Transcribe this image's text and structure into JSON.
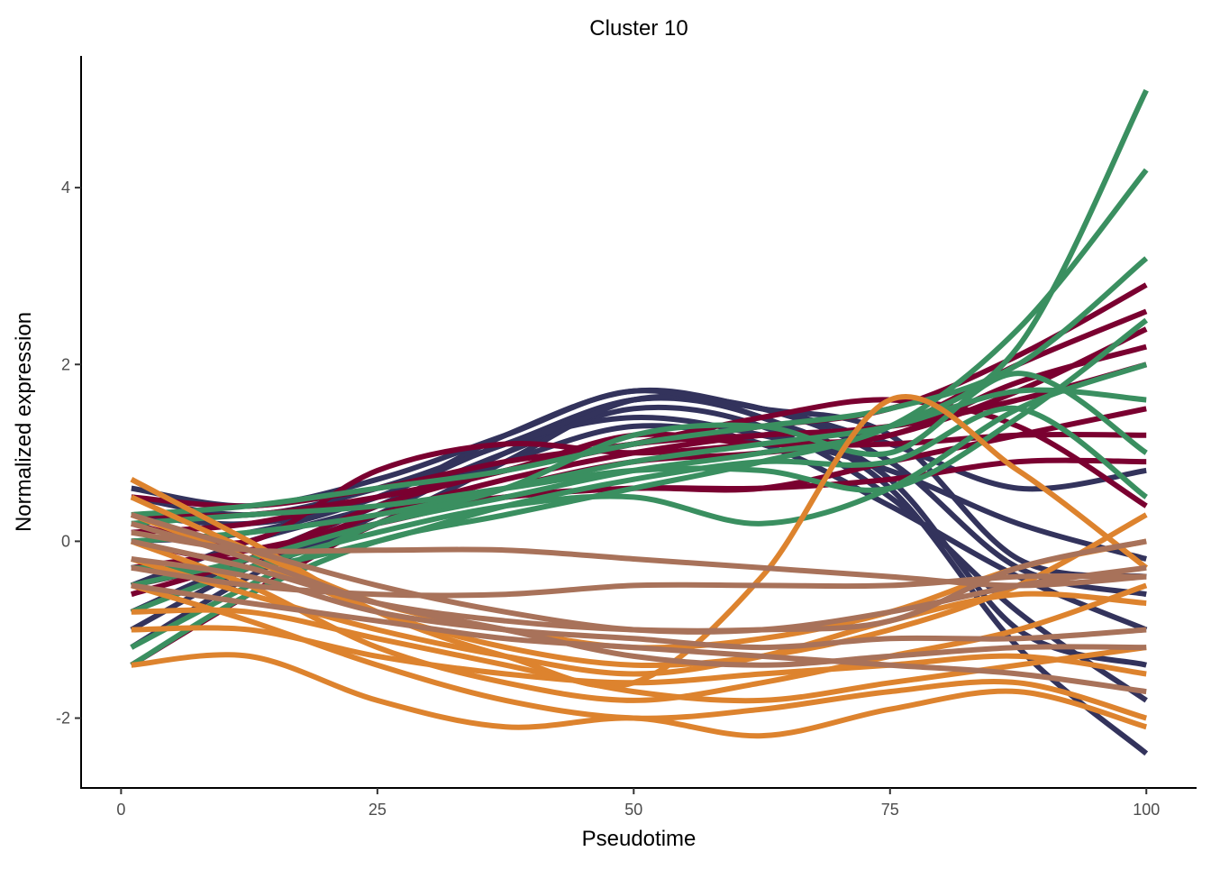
{
  "chart_data": {
    "type": "line",
    "title": "Cluster 10",
    "xlabel": "Pseudotime",
    "ylabel": "Normalized expression",
    "xlim": [
      -3.9,
      104.9
    ],
    "ylim": [
      -2.79,
      5.49
    ],
    "xticks": [
      0,
      25,
      50,
      75,
      100
    ],
    "yticks": [
      -2,
      0,
      2,
      4
    ],
    "grid": false,
    "legend": "none",
    "x": [
      1,
      12.5,
      25,
      37.5,
      50,
      62.5,
      75,
      87.5,
      100
    ],
    "groups": [
      {
        "name": "navy",
        "color": "#33335c",
        "series": [
          [
            0.5,
            0.3,
            0.6,
            1.1,
            1.6,
            1.5,
            0.9,
            -0.3,
            -0.6
          ],
          [
            0.3,
            0.2,
            0.5,
            1.2,
            1.7,
            1.5,
            1.2,
            -0.2,
            -0.4
          ],
          [
            -1.2,
            -0.4,
            0.3,
            1.0,
            1.6,
            1.4,
            0.6,
            -1.2,
            -2.4
          ],
          [
            -0.8,
            -0.2,
            0.4,
            1.0,
            1.5,
            1.3,
            0.5,
            -0.8,
            -1.8
          ],
          [
            0.0,
            0.1,
            0.5,
            1.1,
            1.4,
            1.2,
            0.8,
            0.2,
            -0.2
          ],
          [
            -1.0,
            -0.3,
            0.2,
            0.9,
            1.6,
            1.5,
            1.1,
            0.6,
            0.8
          ],
          [
            0.6,
            0.4,
            0.7,
            1.2,
            1.7,
            1.4,
            0.7,
            -1.0,
            -1.4
          ],
          [
            -0.5,
            0.0,
            0.4,
            0.9,
            1.3,
            1.1,
            0.4,
            -0.4,
            -1.0
          ]
        ]
      },
      {
        "name": "crimson",
        "color": "#7a0030",
        "series": [
          [
            0.5,
            0.4,
            0.6,
            0.9,
            1.1,
            1.3,
            1.5,
            2.1,
            2.9
          ],
          [
            -0.5,
            -0.2,
            0.3,
            0.7,
            1.0,
            1.2,
            1.3,
            2.0,
            2.6
          ],
          [
            0.2,
            0.0,
            0.8,
            1.1,
            1.0,
            1.1,
            1.2,
            1.8,
            2.2
          ],
          [
            -1.4,
            -0.6,
            0.2,
            0.6,
            0.9,
            1.0,
            1.2,
            1.7,
            2.4
          ],
          [
            0.0,
            -0.2,
            0.3,
            0.5,
            0.6,
            0.6,
            0.9,
            1.2,
            1.5
          ],
          [
            -0.3,
            -0.1,
            0.2,
            0.5,
            0.6,
            0.6,
            0.7,
            0.9,
            0.9
          ],
          [
            0.3,
            0.3,
            0.5,
            0.8,
            1.1,
            1.4,
            1.6,
            1.3,
            0.4
          ],
          [
            -0.6,
            -0.2,
            0.4,
            0.8,
            1.1,
            1.2,
            1.3,
            1.6,
            2.0
          ],
          [
            0.1,
            0.2,
            0.5,
            0.8,
            1.2,
            1.1,
            1.1,
            1.2,
            1.2
          ]
        ]
      },
      {
        "name": "green",
        "color": "#3a8f60",
        "series": [
          [
            -1.4,
            -0.6,
            0.0,
            0.3,
            0.6,
            0.9,
            1.3,
            2.2,
            5.1
          ],
          [
            -0.5,
            -0.2,
            0.2,
            0.5,
            0.8,
            1.0,
            1.3,
            2.4,
            4.2
          ],
          [
            0.3,
            0.4,
            0.6,
            0.8,
            1.1,
            1.3,
            1.5,
            2.0,
            3.2
          ],
          [
            -0.8,
            -0.3,
            0.1,
            0.4,
            0.5,
            0.2,
            0.6,
            1.5,
            2.0
          ],
          [
            0.0,
            0.1,
            0.3,
            0.6,
            0.9,
            1.1,
            1.3,
            1.7,
            1.6
          ],
          [
            -0.3,
            -0.3,
            0.0,
            0.4,
            0.7,
            0.9,
            0.9,
            1.5,
            0.5
          ],
          [
            -1.2,
            -0.5,
            0.2,
            0.6,
            1.2,
            1.3,
            1.0,
            1.9,
            1.0
          ],
          [
            0.2,
            0.3,
            0.4,
            0.6,
            0.8,
            0.8,
            0.6,
            1.4,
            2.5
          ]
        ]
      },
      {
        "name": "orange",
        "color": "#dd832e",
        "series": [
          [
            0.7,
            0.0,
            -0.8,
            -1.3,
            -1.6,
            -0.4,
            1.6,
            0.8,
            -0.3
          ],
          [
            -1.4,
            -1.3,
            -1.8,
            -2.1,
            -2.0,
            -2.2,
            -1.9,
            -1.7,
            -2.1
          ],
          [
            0.0,
            -0.5,
            -1.2,
            -1.6,
            -1.8,
            -1.6,
            -1.3,
            -1.0,
            -0.5
          ],
          [
            -0.5,
            -0.9,
            -1.4,
            -1.8,
            -2.0,
            -1.9,
            -1.7,
            -1.6,
            -2.0
          ],
          [
            0.3,
            -0.2,
            -0.8,
            -1.2,
            -1.4,
            -1.3,
            -1.0,
            -0.5,
            0.3
          ],
          [
            -1.0,
            -1.0,
            -1.3,
            -1.5,
            -1.6,
            -1.5,
            -1.4,
            -1.3,
            -1.5
          ],
          [
            -0.2,
            -0.6,
            -1.0,
            -1.3,
            -1.5,
            -1.3,
            -0.9,
            -0.6,
            -0.7
          ],
          [
            -0.8,
            -0.8,
            -1.1,
            -1.4,
            -1.7,
            -1.8,
            -1.6,
            -1.4,
            -1.2
          ],
          [
            0.5,
            -0.1,
            -0.7,
            -1.0,
            -1.2,
            -1.1,
            -0.8,
            -0.3,
            0.0
          ]
        ]
      },
      {
        "name": "brown",
        "color": "#a8725a",
        "series": [
          [
            0.3,
            -0.1,
            -0.5,
            -0.8,
            -1.0,
            -1.0,
            -0.8,
            -0.5,
            -0.3
          ],
          [
            -0.3,
            -0.5,
            -0.6,
            -0.6,
            -0.5,
            -0.5,
            -0.5,
            -0.4,
            -0.4
          ],
          [
            0.1,
            -0.1,
            -0.1,
            -0.1,
            -0.2,
            -0.3,
            -0.4,
            -0.5,
            -0.4
          ],
          [
            -0.5,
            -0.7,
            -0.9,
            -1.1,
            -1.2,
            -1.3,
            -1.4,
            -1.5,
            -1.7
          ],
          [
            0.0,
            -0.3,
            -0.7,
            -0.9,
            -1.0,
            -1.0,
            -0.9,
            -0.3,
            0.0
          ],
          [
            -0.2,
            -0.4,
            -0.8,
            -1.0,
            -1.1,
            -1.2,
            -1.1,
            -1.1,
            -1.0
          ],
          [
            0.2,
            -0.2,
            -0.7,
            -1.0,
            -1.3,
            -1.4,
            -1.3,
            -1.2,
            -1.2
          ]
        ]
      }
    ]
  }
}
